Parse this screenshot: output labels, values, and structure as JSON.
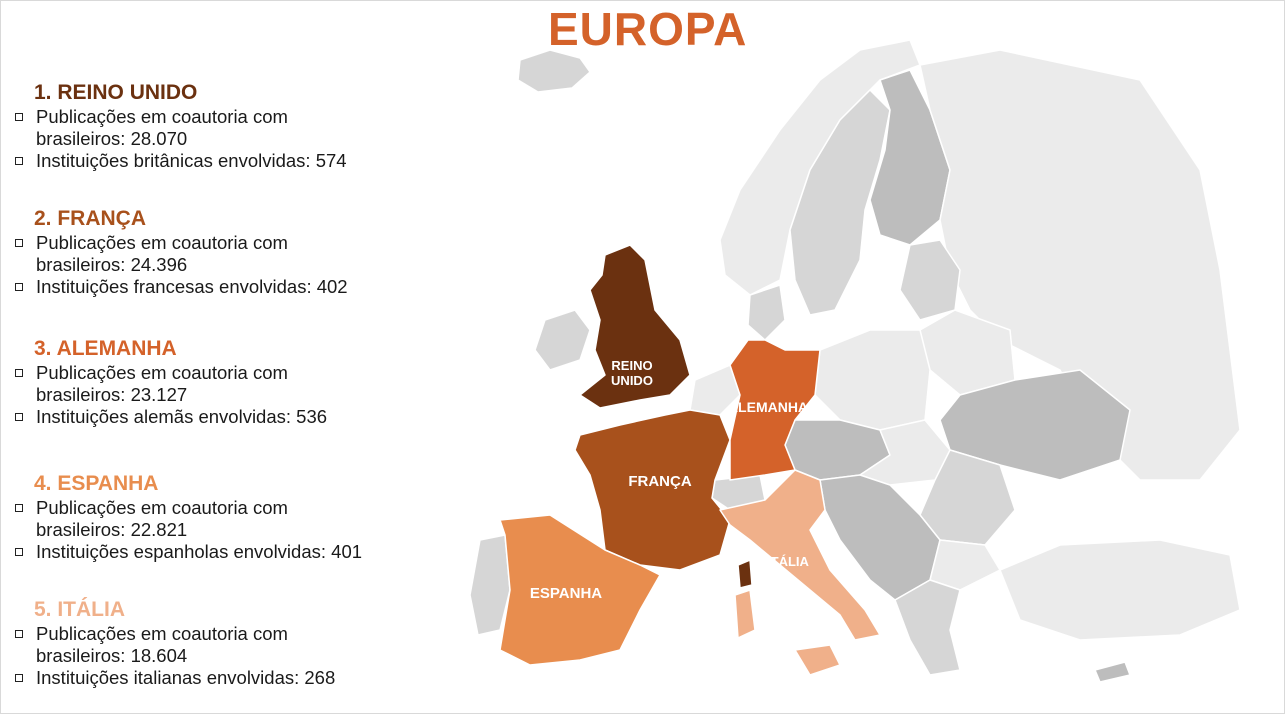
{
  "title": "EUROPA",
  "countries": [
    {
      "heading": "1. REINO UNIDO",
      "color": "#6b3110",
      "line1": "Publicações em coautoria com",
      "line2": "brasileiros: 28.070",
      "line3": "Instituições britânicas envolvidas: 574"
    },
    {
      "heading": "2. FRANÇA",
      "color": "#a8511c",
      "line1": "Publicações em coautoria com",
      "line2": "brasileiros: 24.396",
      "line3": "Instituições francesas envolvidas: 402"
    },
    {
      "heading": "3. ALEMANHA",
      "color": "#d4622a",
      "line1": "Publicações em coautoria com",
      "line2": "brasileiros: 23.127",
      "line3": "Instituições alemãs envolvidas: 536"
    },
    {
      "heading": "4. ESPANHA",
      "color": "#e88d4e",
      "line1": "Publicações em coautoria com",
      "line2": "brasileiros: 22.821",
      "line3": "Instituições espanholas envolvidas: 401"
    },
    {
      "heading": "5. ITÁLIA",
      "color": "#f0b08a",
      "line1": "Publicações em coautoria com",
      "line2": "brasileiros: 18.604",
      "line3": "Instituições italianas envolvidas: 268"
    }
  ],
  "map": {
    "labels": {
      "uk_1": "REINO",
      "uk_2": "UNIDO",
      "germany": "ALEMANHA",
      "france": "FRANÇA",
      "spain": "ESPANHA",
      "italy": "ITÁLIA"
    },
    "colors": {
      "uk": "#6b3110",
      "france": "#a8511c",
      "germany": "#d4622a",
      "spain": "#e88d4e",
      "italy": "#f0b08a",
      "other_light": "#ebebeb",
      "other_mid": "#d6d6d6",
      "other_dark": "#bdbdbd",
      "border": "#ffffff"
    }
  }
}
